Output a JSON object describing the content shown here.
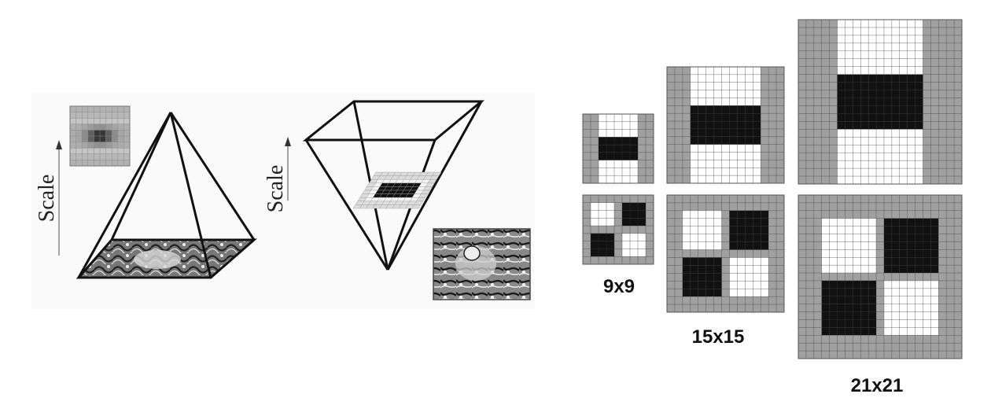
{
  "left_panel": {
    "pyramid_axis_label": "Scale",
    "inverted_axis_label": "Scale"
  },
  "filters": {
    "size_labels": [
      "9x9",
      "15x15",
      "21x21"
    ]
  },
  "colors": {
    "black": "#111111",
    "gray": "#a0a0a0",
    "white": "#ffffff",
    "grid_line": "#333333",
    "panel_bg": "#fafafa"
  }
}
